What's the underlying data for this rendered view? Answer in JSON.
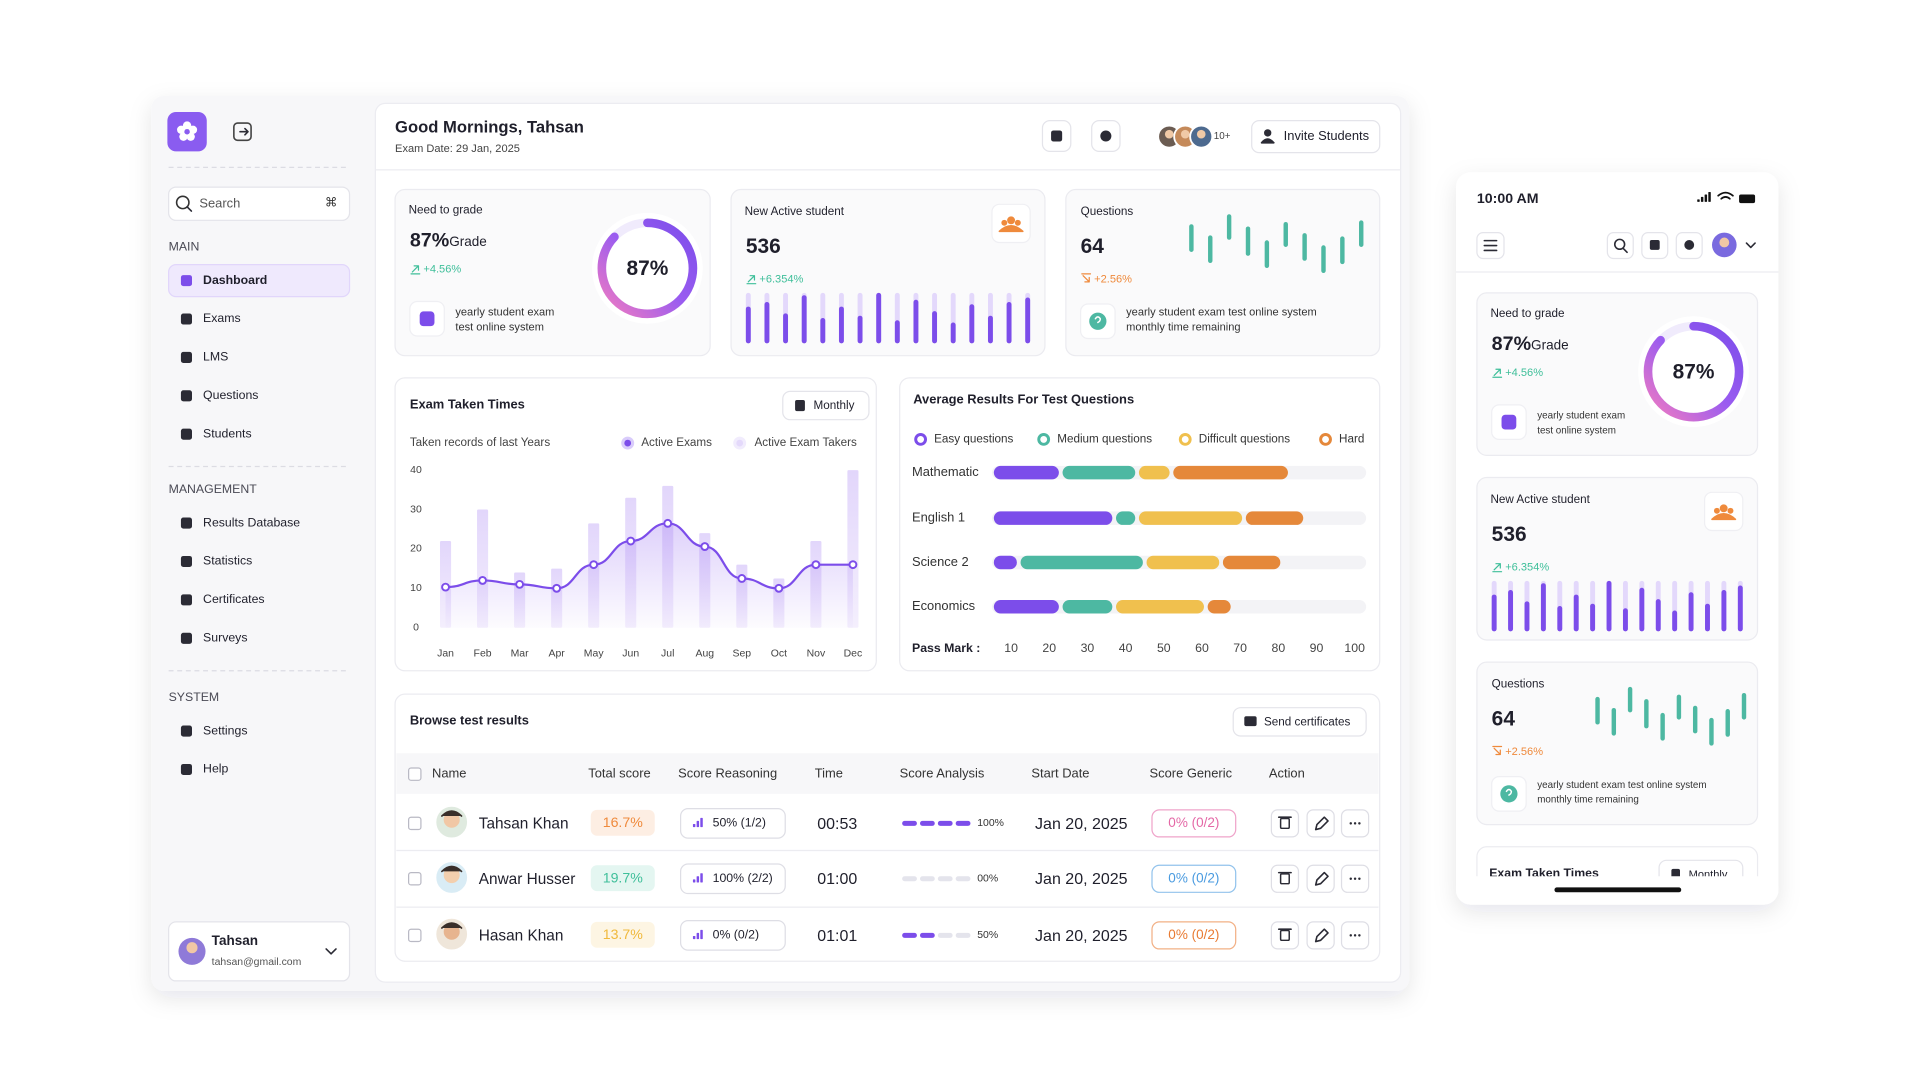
{
  "sidebar": {
    "search": "Search",
    "shortcut": "⌘",
    "sections": [
      {
        "title": "MAIN",
        "items": [
          "Dashboard",
          "Exams",
          "LMS",
          "Questions",
          "Students"
        ]
      },
      {
        "title": "MANAGEMENT",
        "items": [
          "Results Database",
          "Statistics",
          "Certificates",
          "Surveys"
        ]
      },
      {
        "title": "SYSTEM",
        "items": [
          "Settings",
          "Help"
        ]
      }
    ],
    "user": {
      "name": "Tahsan",
      "email": "tahsan@gmail.com"
    }
  },
  "header": {
    "greeting": "Good Mornings, Tahsan",
    "date": "Exam Date: 29 Jan, 2025",
    "avatar_count": "10+",
    "invite": "Invite Students"
  },
  "cards": {
    "grade": {
      "title": "Need to grade",
      "value": "87%",
      "unit": "Grade",
      "change": "+4.56%",
      "note": [
        "yearly student exam",
        "test online system"
      ],
      "ring": {
        "value": 87,
        "label": "87%"
      }
    },
    "active": {
      "title": "New Active student",
      "value": 536,
      "change": "+6.354%",
      "bars": {
        "ylim": [
          0,
          100
        ],
        "values": [
          70,
          80,
          55,
          95,
          45,
          70,
          50,
          100,
          40,
          85,
          60,
          35,
          75,
          50,
          80,
          90
        ]
      }
    },
    "questions": {
      "title": "Questions",
      "value": 64,
      "change": "+2.56%",
      "note": [
        "yearly student exam test online system",
        "monthly time remaining"
      ],
      "ranges": {
        "ylim": [
          0,
          10
        ],
        "low": [
          3.8,
          1.8,
          6,
          3.1,
          0.9,
          4.7,
          2.2,
          0,
          1.6,
          4.7
        ],
        "high": [
          8,
          6,
          9.8,
          7.6,
          5.1,
          8.4,
          6.4,
          4.2,
          5.8,
          8.7
        ]
      }
    }
  },
  "exam_chart": {
    "type": "line",
    "title": "Exam Taken Times",
    "button": "Monthly",
    "subtitle": "Taken records of last Years",
    "categories": [
      "Jan",
      "Feb",
      "Mar",
      "Apr",
      "May",
      "Jun",
      "Jul",
      "Aug",
      "Sep",
      "Oct",
      "Nov",
      "Dec"
    ],
    "series": [
      {
        "name": "Active Exams",
        "color": "#7c4dea",
        "values": [
          10.3,
          12,
          11,
          10,
          16,
          22,
          26.5,
          20.6,
          12.5,
          10,
          16,
          16
        ]
      },
      {
        "name": "Active Exam Takers",
        "color": "#e4d9fb",
        "type": "bar",
        "values": [
          22,
          30,
          14,
          15,
          26.5,
          33,
          36,
          24,
          16,
          12.5,
          22,
          40
        ]
      }
    ],
    "ylim": [
      0,
      40
    ],
    "yticks": [
      0,
      10,
      20,
      30,
      40
    ]
  },
  "results_chart": {
    "type": "bar",
    "orientation": "horizontal",
    "stacked": true,
    "title": "Average Results For Test Questions",
    "categories": [
      "Mathematic",
      "English 1",
      "Science 2",
      "Economics"
    ],
    "series": [
      {
        "name": "Easy questions",
        "color": "#7c4dea",
        "values": [
          18,
          32,
          7,
          18
        ]
      },
      {
        "name": "Medium questions",
        "color": "#4db8a2",
        "values": [
          20,
          6,
          33,
          14
        ]
      },
      {
        "name": "Difficult questions",
        "color": "#f0c04e",
        "values": [
          9,
          28,
          20,
          24
        ]
      },
      {
        "name": "Hard",
        "color": "#e5883a",
        "values": [
          31,
          16,
          16,
          7
        ]
      }
    ],
    "xlabel": "Pass Mark :",
    "xlim": [
      5,
      103
    ],
    "xticks": [
      10,
      20,
      30,
      40,
      50,
      60,
      70,
      80,
      90,
      100
    ]
  },
  "table": {
    "title": "Browse test results",
    "button": "Send certificates",
    "columns": [
      "Name",
      "Total score",
      "Score Reasoning",
      "Time",
      "Score Analysis",
      "Start Date",
      "Score Generic",
      "Action"
    ],
    "rows": [
      {
        "name": "Tahsan Khan",
        "total": "16.7%",
        "total_color": "#ef8a3c",
        "reasoning": "50% (1/2)",
        "time": "00:53",
        "analysis": {
          "value": 100,
          "label": "100%"
        },
        "start": "Jan 20, 2025",
        "generic": "0% (0/2)",
        "generic_color": "#e468a6"
      },
      {
        "name": "Anwar Husser",
        "total": "19.7%",
        "total_color": "#3fbf9a",
        "reasoning": "100% (2/2)",
        "time": "01:00",
        "analysis": {
          "value": 0,
          "label": "00%"
        },
        "start": "Jan 20, 2025",
        "generic": "0% (0/2)",
        "generic_color": "#4a9be0"
      },
      {
        "name": "Hasan Khan",
        "total": "13.7%",
        "total_color": "#f0b93c",
        "reasoning": "0% (0/2)",
        "time": "01:01",
        "analysis": {
          "value": 50,
          "label": "50%"
        },
        "start": "Jan 20, 2025",
        "generic": "0% (0/2)",
        "generic_color": "#e97b33"
      }
    ]
  },
  "mobile": {
    "time": "10:00 AM"
  }
}
